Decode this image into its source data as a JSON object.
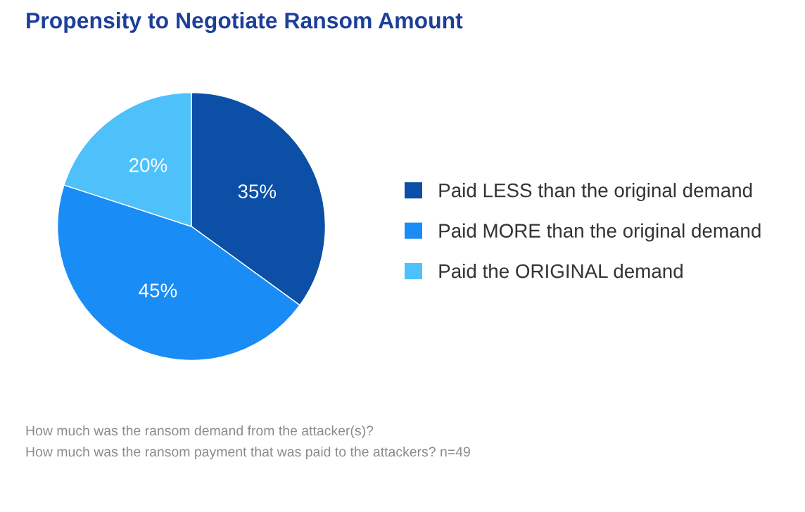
{
  "chart_data": {
    "type": "pie",
    "title": "Propensity to Negotiate Ransom Amount",
    "categories": [
      "Paid LESS than the original demand",
      "Paid MORE than the original demand",
      "Paid the ORIGINAL demand"
    ],
    "values": [
      35,
      45,
      20
    ],
    "colors": [
      "#0b4fa6",
      "#1a8cf5",
      "#4fc1fa"
    ],
    "value_labels": [
      "35%",
      "45%",
      "20%"
    ],
    "legend": "right",
    "annotations": [
      "How much was the ransom demand from the attacker(s)?",
      "How much was the ransom payment that was paid to the attackers? n=49"
    ]
  }
}
